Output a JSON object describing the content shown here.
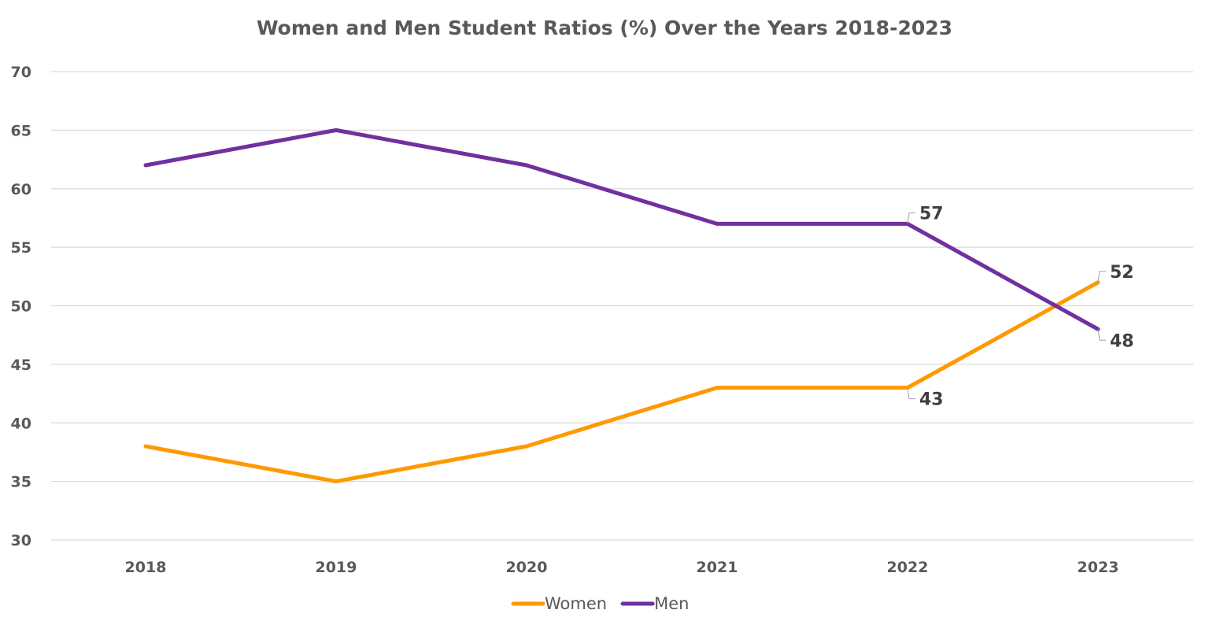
{
  "chart_data": {
    "type": "line",
    "title": "Women and Men Student Ratios (%) Over the Years 2018-2023",
    "xlabel": "",
    "ylabel": "",
    "categories": [
      "2018",
      "2019",
      "2020",
      "2021",
      "2022",
      "2023"
    ],
    "ylim": [
      30,
      70
    ],
    "yticks": [
      30,
      35,
      40,
      45,
      50,
      55,
      60,
      65,
      70
    ],
    "grid": true,
    "legend_position": "bottom",
    "series": [
      {
        "name": "Women",
        "color": "#FF9900",
        "values": [
          38,
          35,
          38,
          43,
          43,
          52
        ],
        "data_labels": [
          {
            "index": 4,
            "text": "43",
            "position": "below"
          },
          {
            "index": 5,
            "text": "52",
            "position": "above"
          }
        ]
      },
      {
        "name": "Men",
        "color": "#7030A0",
        "values": [
          62,
          65,
          62,
          57,
          57,
          48
        ],
        "data_labels": [
          {
            "index": 4,
            "text": "57",
            "position": "above"
          },
          {
            "index": 5,
            "text": "48",
            "position": "below"
          }
        ]
      }
    ]
  }
}
